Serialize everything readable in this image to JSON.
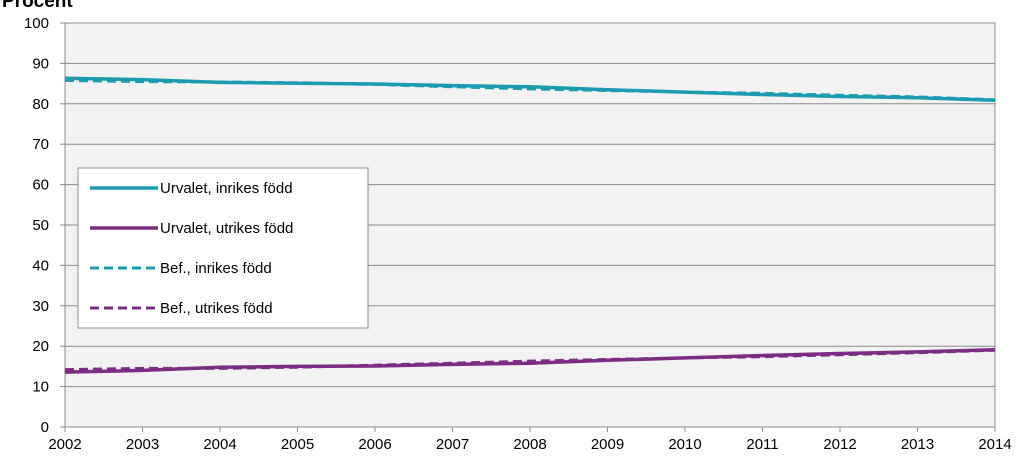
{
  "chart_data": {
    "type": "line",
    "ylabel": "Procent",
    "xlabel": "",
    "title": "",
    "x": [
      2002,
      2003,
      2004,
      2005,
      2006,
      2007,
      2008,
      2009,
      2010,
      2011,
      2012,
      2013,
      2014
    ],
    "ylim": [
      0,
      100
    ],
    "yticks": [
      0,
      10,
      20,
      30,
      40,
      50,
      60,
      70,
      80,
      90,
      100
    ],
    "grid": true,
    "legend_position": "left",
    "series": [
      {
        "name": "Urvalet, inrikes född",
        "style": "solid",
        "color": "#1b9bb0",
        "values": [
          86.3,
          86.0,
          85.3,
          85.1,
          84.9,
          84.5,
          84.2,
          83.5,
          82.9,
          82.3,
          81.8,
          81.5,
          80.9
        ]
      },
      {
        "name": "Urvalet, utrikes född",
        "style": "solid",
        "color": "#7b2d84",
        "values": [
          13.6,
          14.0,
          14.8,
          15.0,
          15.1,
          15.5,
          15.8,
          16.5,
          17.1,
          17.7,
          18.2,
          18.6,
          19.1
        ]
      },
      {
        "name": "Bef., inrikes född",
        "style": "dashed",
        "color": "#1b9bb0",
        "values": [
          85.8,
          85.5,
          85.4,
          85.2,
          84.8,
          84.2,
          83.7,
          83.3,
          82.9,
          82.6,
          82.1,
          81.7,
          81.0
        ]
      },
      {
        "name": "Bef., utrikes född",
        "style": "dashed",
        "color": "#7b2d84",
        "values": [
          14.2,
          14.5,
          14.5,
          14.8,
          15.3,
          15.8,
          16.3,
          16.7,
          17.1,
          17.4,
          17.9,
          18.4,
          19.0
        ]
      }
    ]
  }
}
